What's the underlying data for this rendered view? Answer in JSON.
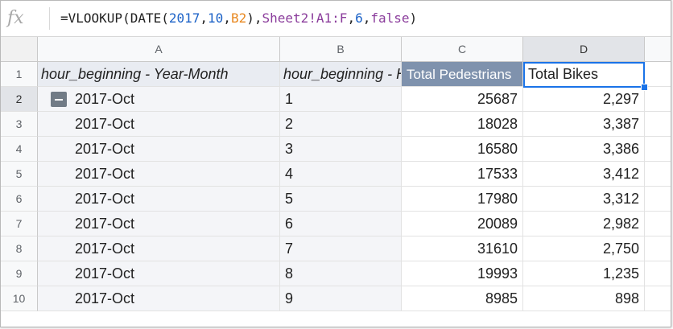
{
  "formula_bar": {
    "fx_label": "fx",
    "formula_parts": [
      {
        "text": "=VLOOKUP(DATE(",
        "kind": "plain"
      },
      {
        "text": "2017",
        "kind": "num"
      },
      {
        "text": ",",
        "kind": "plain"
      },
      {
        "text": "10",
        "kind": "num"
      },
      {
        "text": ",",
        "kind": "plain"
      },
      {
        "text": "B2",
        "kind": "ref"
      },
      {
        "text": "),",
        "kind": "plain"
      },
      {
        "text": "Sheet2!A1:F",
        "kind": "range"
      },
      {
        "text": ",",
        "kind": "plain"
      },
      {
        "text": "6",
        "kind": "num"
      },
      {
        "text": ",",
        "kind": "plain"
      },
      {
        "text": "false",
        "kind": "kw"
      },
      {
        "text": ")",
        "kind": "plain"
      }
    ]
  },
  "columns": [
    "A",
    "B",
    "C",
    "D"
  ],
  "header_row": {
    "row_number": "1",
    "a": "hour_beginning - Year-Month",
    "b": "hour_beginning - Hour",
    "c": "Total Pedestrians",
    "d": "Total Bikes"
  },
  "rows": [
    {
      "n": "2",
      "a": "2017-Oct",
      "b": "1",
      "c": "25687",
      "d": "2,297"
    },
    {
      "n": "3",
      "a": "2017-Oct",
      "b": "2",
      "c": "18028",
      "d": "3,387"
    },
    {
      "n": "4",
      "a": "2017-Oct",
      "b": "3",
      "c": "16580",
      "d": "3,386"
    },
    {
      "n": "5",
      "a": "2017-Oct",
      "b": "4",
      "c": "17533",
      "d": "3,412"
    },
    {
      "n": "6",
      "a": "2017-Oct",
      "b": "5",
      "c": "17980",
      "d": "3,312"
    },
    {
      "n": "7",
      "a": "2017-Oct",
      "b": "6",
      "c": "20089",
      "d": "2,982"
    },
    {
      "n": "8",
      "a": "2017-Oct",
      "b": "7",
      "c": "31610",
      "d": "2,750"
    },
    {
      "n": "9",
      "a": "2017-Oct",
      "b": "8",
      "c": "19993",
      "d": "1,235"
    },
    {
      "n": "10",
      "a": "2017-Oct",
      "b": "9",
      "c": "8985",
      "d": "898"
    }
  ],
  "colors": {
    "selection": "#1a73e8",
    "pivot_header_dark": "#7f92ad",
    "formula_number": "#1c62c7",
    "formula_ref": "#e8871e",
    "formula_range": "#8b3d9c"
  }
}
